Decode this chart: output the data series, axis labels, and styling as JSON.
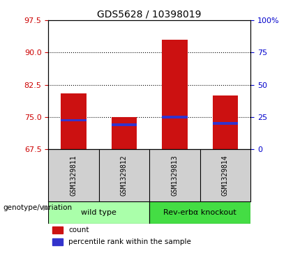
{
  "title": "GDS5628 / 10398019",
  "samples": [
    "GSM1329811",
    "GSM1329812",
    "GSM1329813",
    "GSM1329814"
  ],
  "bar_bottoms": [
    67.5,
    67.5,
    67.5,
    67.5
  ],
  "bar_tops": [
    80.5,
    75.0,
    93.0,
    80.0
  ],
  "blue_markers": [
    74.2,
    73.2,
    75.0,
    73.5
  ],
  "ylim_left": [
    67.5,
    97.5
  ],
  "yticks_left": [
    67.5,
    75.0,
    82.5,
    90.0,
    97.5
  ],
  "yticks_right": [
    0,
    25,
    50,
    75,
    100
  ],
  "ytick_right_labels": [
    "0",
    "25",
    "50",
    "75",
    "100%"
  ],
  "bar_color": "#cc1111",
  "blue_color": "#3333cc",
  "grid_color": "#000000",
  "genotype_groups": [
    {
      "label": "wild type",
      "start": 0,
      "end": 2,
      "color": "#aaffaa"
    },
    {
      "label": "Rev-erbα knockout",
      "start": 2,
      "end": 4,
      "color": "#44dd44"
    }
  ],
  "legend_items": [
    {
      "color": "#cc1111",
      "label": "count"
    },
    {
      "color": "#3333cc",
      "label": "percentile rank within the sample"
    }
  ],
  "genotype_label": "genotype/variation",
  "sample_bg": "#d0d0d0",
  "plot_bg": "#ffffff",
  "left_tick_color": "#cc0000",
  "right_tick_color": "#0000cc"
}
